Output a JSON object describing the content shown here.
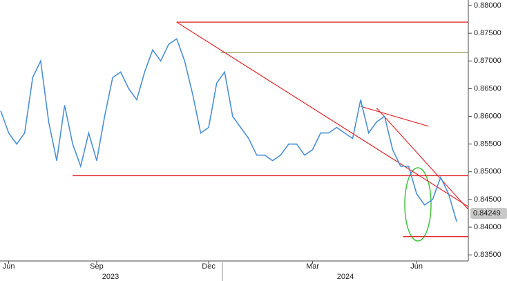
{
  "chart_data": {
    "type": "line",
    "categories": [
      null,
      "Jun",
      null,
      null,
      null,
      null,
      null,
      null,
      null,
      null,
      null,
      null,
      "Sep",
      null,
      null,
      null,
      null,
      null,
      null,
      null,
      null,
      null,
      null,
      null,
      null,
      null,
      "Dec",
      null,
      null,
      null,
      null,
      null,
      null,
      null,
      null,
      null,
      null,
      null,
      null,
      "Mar",
      null,
      null,
      null,
      null,
      null,
      null,
      null,
      null,
      null,
      null,
      null,
      null,
      "Jun",
      null,
      null,
      null,
      null,
      null
    ],
    "x_groups": [
      "2023",
      "2024"
    ],
    "values": [
      0.861,
      0.857,
      0.855,
      0.857,
      0.867,
      0.87,
      0.859,
      0.852,
      0.862,
      0.855,
      0.851,
      0.857,
      0.852,
      0.86,
      0.867,
      0.868,
      0.865,
      0.863,
      0.868,
      0.872,
      0.87,
      0.873,
      0.874,
      0.87,
      0.864,
      0.857,
      0.858,
      0.866,
      0.868,
      0.86,
      0.858,
      0.856,
      0.853,
      0.853,
      0.852,
      0.853,
      0.855,
      0.855,
      0.853,
      0.854,
      0.857,
      0.857,
      0.858,
      0.857,
      0.856,
      0.863,
      0.857,
      0.859,
      0.86,
      0.854,
      0.851,
      0.851,
      0.846,
      0.844,
      0.845,
      0.849,
      0.846,
      0.841
    ],
    "color": "#4a8fd8",
    "ylim": [
      0.8339,
      0.881
    ],
    "yticks": [
      {
        "value": 0.835,
        "label": "0.83500"
      },
      {
        "value": 0.84,
        "label": "0.84000"
      },
      {
        "value": 0.845,
        "label": "0.84500"
      },
      {
        "value": 0.85,
        "label": "0.85000"
      },
      {
        "value": 0.855,
        "label": "0.85500"
      },
      {
        "value": 0.86,
        "label": "0.86000"
      },
      {
        "value": 0.865,
        "label": "0.86500"
      },
      {
        "value": 0.87,
        "label": "0.87000"
      },
      {
        "value": 0.875,
        "label": "0.87500"
      },
      {
        "value": 0.88,
        "label": "0.88000"
      }
    ],
    "last_price": {
      "value": 0.84249,
      "label": "0.84249"
    },
    "levels": [
      {
        "y": 0.877,
        "x0": 22,
        "color": "#e02a2e"
      },
      {
        "y": 0.8715,
        "x0": 27.5,
        "color": "#a8a878"
      },
      {
        "y": 0.8493,
        "x0": 9,
        "color": "#e02a2e"
      },
      {
        "y": 0.8383,
        "x0": 50.3,
        "color": "#e02a2e"
      }
    ],
    "trendlines": [
      {
        "x0": 22,
        "y0": 0.877,
        "x1": 58.5,
        "y1": 0.8437,
        "color": "#e02a2e"
      },
      {
        "x0": 45,
        "y0": 0.8618,
        "x1": 53.5,
        "y1": 0.8582,
        "color": "#e02a2e"
      },
      {
        "x0": 47,
        "y0": 0.8615,
        "x1": 58.5,
        "y1": 0.8432,
        "color": "#e02a2e"
      }
    ]
  }
}
